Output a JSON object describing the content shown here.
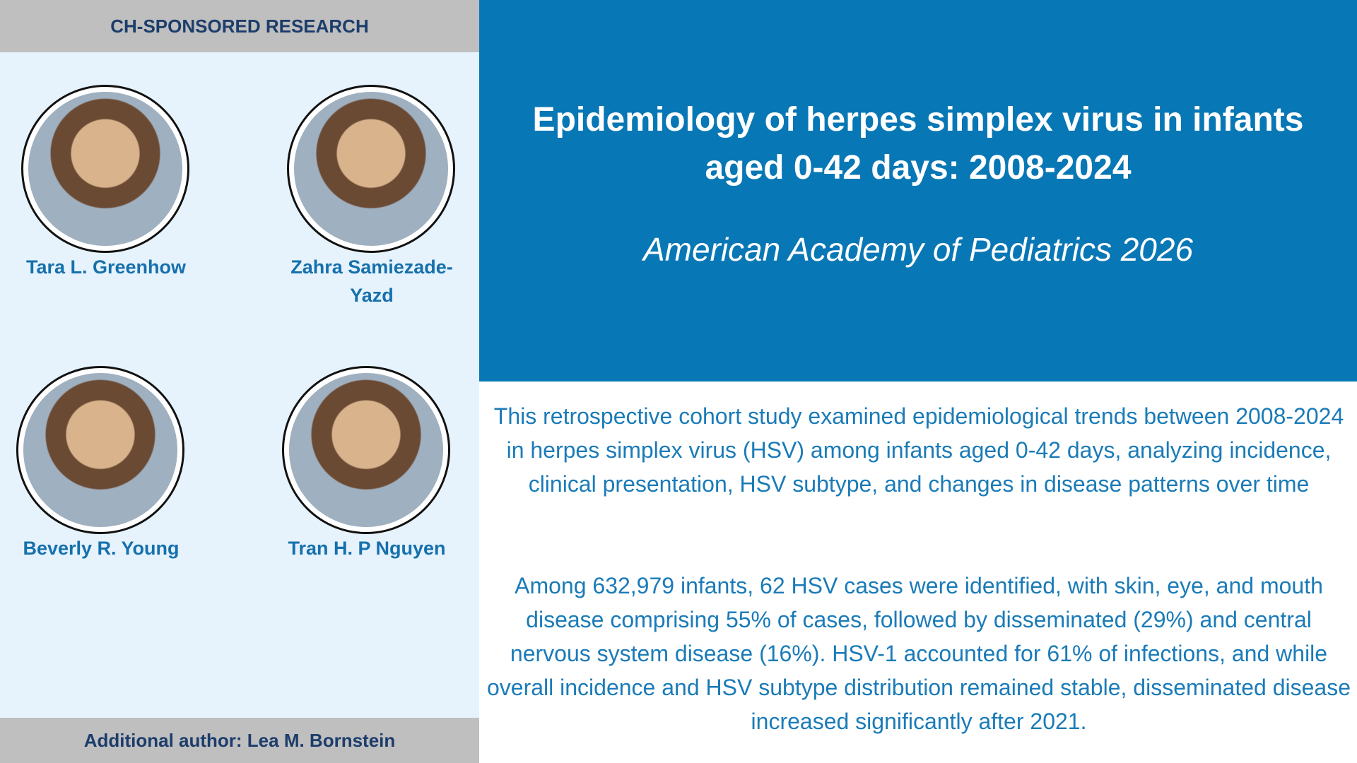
{
  "header": {
    "label": "CH-SPONSORED RESEARCH"
  },
  "title": "Epidemiology of herpes simplex virus in infants aged 0-42 days: 2008-2024",
  "subtitle": "American Academy of Pediatrics 2026",
  "paragraphs": [
    "This retrospective cohort study examined epidemiological trends between 2008-2024 in herpes simplex virus (HSV) among infants aged 0-42 days, analyzing incidence, clinical presentation, HSV subtype, and changes in disease patterns over time",
    "Among 632,979 infants, 62 HSV cases were identified, with skin, eye, and mouth disease comprising 55% of cases, followed by disseminated (29%) and central nervous system disease (16%). HSV-1 accounted for 61% of infections, and while overall incidence and HSV subtype distribution remained stable, disseminated disease increased significantly after 2021."
  ],
  "authors": [
    {
      "name": "Tara L. Greenhow"
    },
    {
      "name": "Zahra Samiezade-Yazd"
    },
    {
      "name": "Beverly R. Young"
    },
    {
      "name": "Tran H. P Nguyen"
    }
  ],
  "footer": {
    "label": "Additional author: Lea M. Bornstein"
  }
}
